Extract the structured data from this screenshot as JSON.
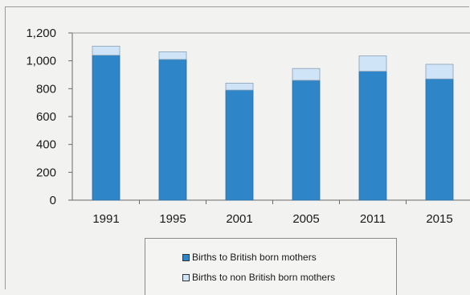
{
  "chart_data": {
    "type": "bar",
    "stacked": true,
    "categories": [
      "1991",
      "1995",
      "2001",
      "2005",
      "2011",
      "2015"
    ],
    "series": [
      {
        "name": "Births to British born mothers",
        "color": "#2e86c8",
        "values": [
          1040,
          1010,
          790,
          860,
          925,
          870
        ]
      },
      {
        "name": "Births to non British born mothers",
        "color": "#cfe4f7",
        "values": [
          65,
          55,
          50,
          85,
          110,
          105
        ]
      }
    ],
    "yticks": [
      "0",
      "200",
      "400",
      "600",
      "800",
      "1,000",
      "1,200"
    ],
    "ylim": [
      0,
      1200
    ],
    "grid": false,
    "legend_position": "bottom"
  }
}
